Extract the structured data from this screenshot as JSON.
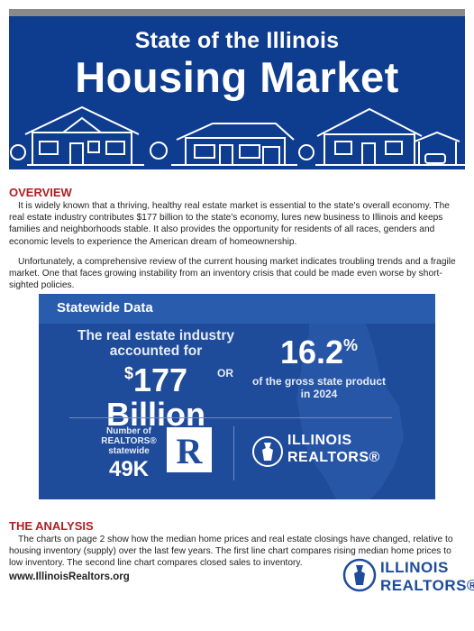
{
  "header": {
    "title_line1": "State of the Illinois",
    "title_line2": "Housing Market"
  },
  "overview": {
    "heading": "OVERVIEW",
    "paragraph1": "It is widely known that a thriving, healthy real estate market is essential to the state's overall economy. The real estate industry contributes $177 billion to the state's economy, lures new business to Illinois and keeps families and neighborhoods stable. It also provides the opportunity for residents of all races, genders and economic levels to experience the American dream of homeownership.",
    "paragraph2": "Unfortunately, a comprehensive review of the current housing market indicates troubling trends and a fragile market. One that faces growing instability from an inventory crisis that could be made even worse by short-sighted policies."
  },
  "statewide": {
    "heading": "Statewide Data",
    "industry_lead": "The real estate industry accounted for",
    "industry_currency": "$",
    "industry_amount": "177",
    "industry_unit": "Billion",
    "or": "OR",
    "gdp_value": "16.2",
    "gdp_symbol": "%",
    "gdp_desc": "of the gross state product in 2024",
    "realtors_label": "Number of REALTORS® statewide",
    "realtors_count": "49K",
    "r_mark": "R",
    "logo_line1": "ILLINOIS",
    "logo_line2": "REALTORS®"
  },
  "analysis": {
    "heading": "THE ANALYSIS",
    "paragraph": "The charts on page 2 show how the median home prices and real estate closings have changed, relative to housing inventory (supply) over the last few years. The first line chart compares rising median home prices to low inventory. The second line chart compares closed sales to inventory."
  },
  "footer": {
    "url": "www.IllinoisRealtors.org",
    "logo_line1": "ILLINOIS",
    "logo_line2": "REALTORS®"
  },
  "colors": {
    "brand_blue": "#0e3c8f",
    "panel_blue": "#1e4b9a",
    "heading_red": "#b01e23"
  }
}
